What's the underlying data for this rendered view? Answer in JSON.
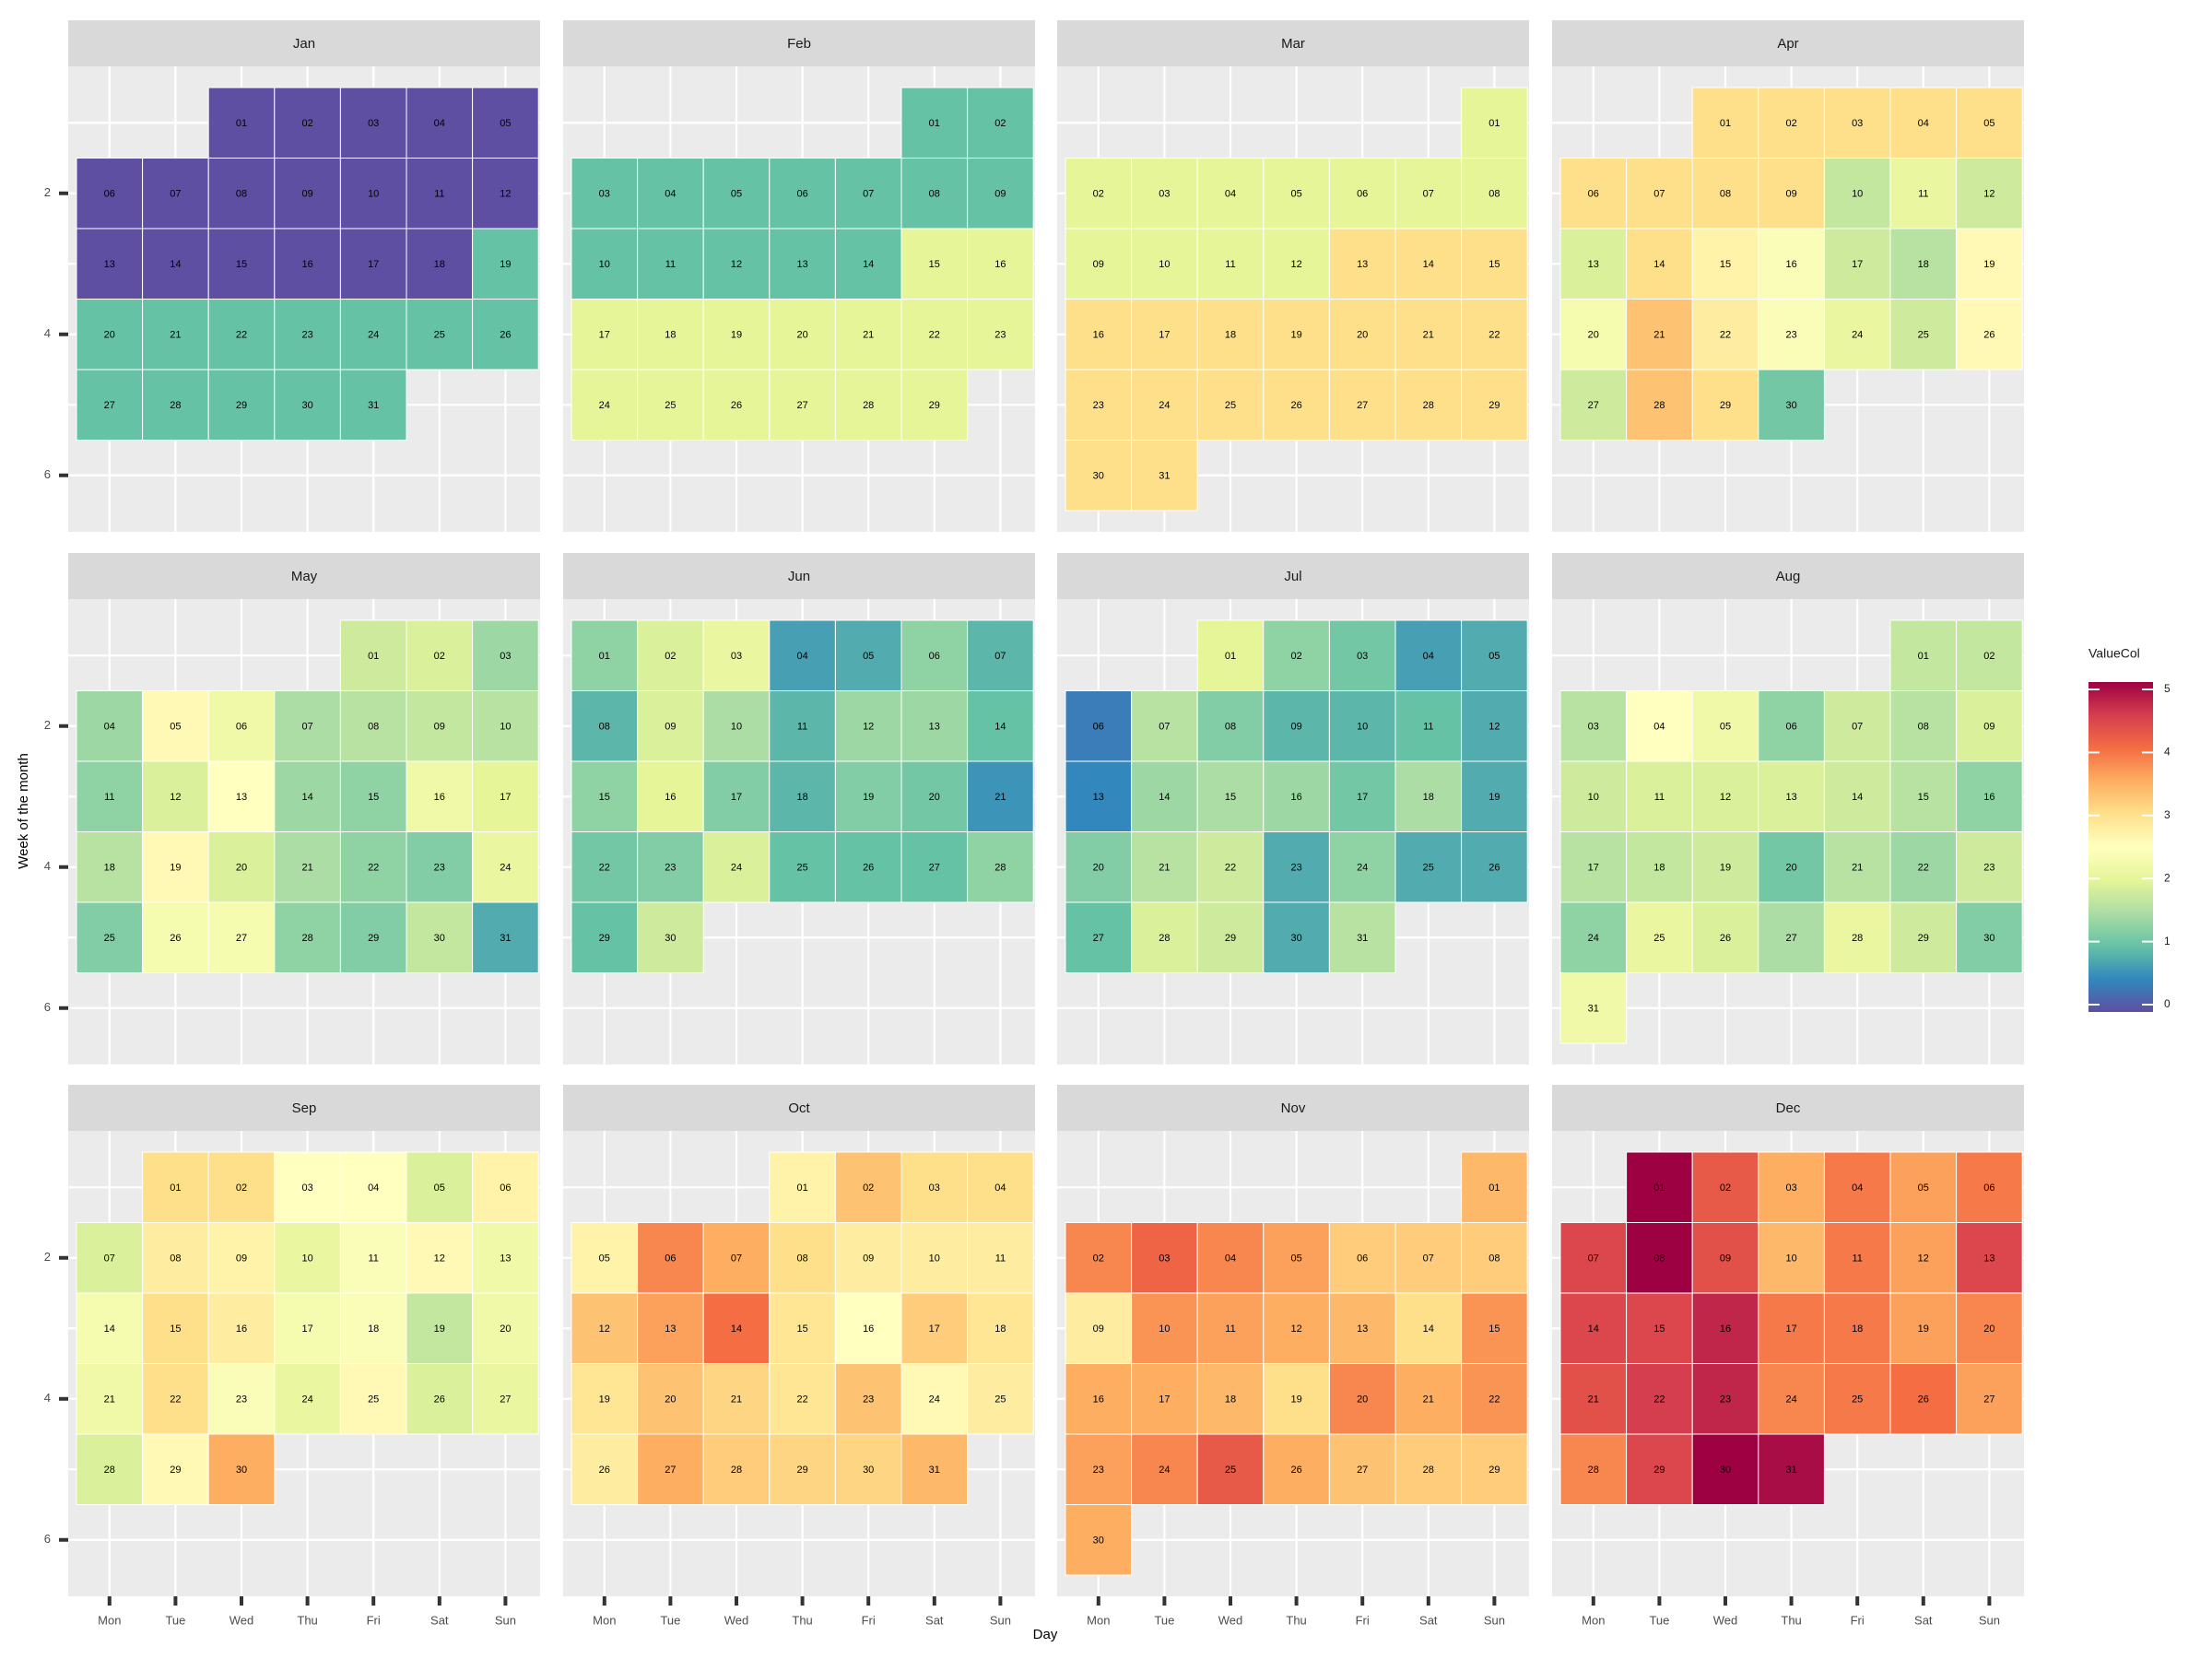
{
  "chart_data": {
    "type": "heatmap",
    "subtype": "calendar-heatmap",
    "xlabel": "Day",
    "ylabel": "Week of the month",
    "x_ticks": [
      "Mon",
      "Tue",
      "Wed",
      "Thu",
      "Fri",
      "Sat",
      "Sun"
    ],
    "y_ticks": [
      2,
      4,
      6
    ],
    "legend": {
      "title": "ValueCol",
      "min": 0,
      "max": 5,
      "ticks": [
        0,
        1,
        2,
        3,
        4,
        5
      ],
      "position": "right"
    },
    "colormap": [
      "#5e4fa2",
      "#3288bd",
      "#66c2a5",
      "#abdda4",
      "#e6f598",
      "#ffffbf",
      "#fee08b",
      "#fdae61",
      "#f46d43",
      "#d53e4f",
      "#9e0142"
    ],
    "grid": true,
    "months": [
      {
        "name": "Jan",
        "start_weekday": 2,
        "values": [
          0,
          0,
          0,
          0,
          0,
          0,
          0,
          0,
          0,
          0,
          0,
          0,
          0,
          0,
          0,
          0,
          0,
          0,
          1,
          1,
          1,
          1,
          1,
          1,
          1,
          1,
          1,
          1,
          1,
          1,
          1
        ]
      },
      {
        "name": "Feb",
        "start_weekday": 5,
        "values": [
          1,
          1,
          1,
          1,
          1,
          1,
          1,
          1,
          1,
          1,
          1,
          1,
          1,
          1,
          2,
          2,
          2,
          2,
          2,
          2,
          2,
          2,
          2,
          2,
          2,
          2,
          2,
          2,
          2
        ]
      },
      {
        "name": "Mar",
        "start_weekday": 6,
        "values": [
          2,
          2,
          2,
          2,
          2,
          2,
          2,
          2,
          2,
          2,
          2,
          2,
          3,
          3,
          3,
          3,
          3,
          3,
          3,
          3,
          3,
          3,
          3,
          3,
          3,
          3,
          3,
          3,
          3,
          3,
          3
        ]
      },
      {
        "name": "Apr",
        "start_weekday": 2,
        "values": [
          3,
          3,
          3,
          3,
          3,
          3,
          3,
          3,
          3,
          1.7,
          2.1,
          1.8,
          1.9,
          3,
          2.7,
          2.4,
          1.8,
          1.6,
          2.6,
          2.3,
          3.3,
          2.8,
          2.4,
          2.1,
          1.8,
          2.6,
          1.8,
          3.3,
          3,
          1.1
        ]
      },
      {
        "name": "May",
        "start_weekday": 4,
        "values": [
          1.8,
          1.9,
          1.4,
          1.4,
          2.6,
          2.2,
          1.5,
          1.6,
          1.7,
          1.6,
          1.3,
          1.9,
          2.5,
          1.4,
          1.3,
          2.2,
          2,
          1.6,
          2.6,
          1.9,
          1.5,
          1.3,
          1.2,
          2.1,
          1.2,
          2.3,
          2.3,
          1.3,
          1.2,
          1.7,
          0.8
        ]
      },
      {
        "name": "Jun",
        "start_weekday": 0,
        "values": [
          1.3,
          1.9,
          2.1,
          0.7,
          0.8,
          1.3,
          0.9,
          0.9,
          1.9,
          1.5,
          0.9,
          1.4,
          1.4,
          1,
          1.3,
          2,
          1.2,
          0.9,
          1.2,
          1.1,
          0.6,
          1.1,
          1.2,
          1.9,
          1,
          1,
          1,
          1.3,
          1,
          1.8
        ]
      },
      {
        "name": "Jul",
        "start_weekday": 2,
        "values": [
          2,
          1.3,
          1.1,
          0.7,
          0.8,
          0.4,
          1.6,
          1.2,
          0.9,
          0.9,
          1,
          0.8,
          0.5,
          1.4,
          1.5,
          1.4,
          1.1,
          1.5,
          0.8,
          1.2,
          1.6,
          1.8,
          0.8,
          1.3,
          0.8,
          0.8,
          1,
          1.9,
          1.8,
          0.8,
          1.6
        ]
      },
      {
        "name": "Aug",
        "start_weekday": 5,
        "values": [
          1.7,
          1.7,
          1.6,
          2.5,
          2.2,
          1.3,
          1.8,
          1.6,
          1.9,
          1.8,
          1.9,
          1.9,
          1.9,
          1.8,
          1.6,
          1.3,
          1.6,
          1.7,
          1.8,
          1.1,
          1.6,
          1.4,
          1.8,
          1.3,
          2.1,
          1.9,
          1.5,
          2.1,
          1.8,
          1.2,
          2.2
        ]
      },
      {
        "name": "Sep",
        "start_weekday": 1,
        "values": [
          3,
          3,
          2.5,
          2.5,
          1.9,
          2.7,
          1.9,
          2.8,
          2.7,
          2.1,
          2.4,
          2.6,
          2.2,
          2.3,
          3,
          2.8,
          2.3,
          2.4,
          1.7,
          2.2,
          2.2,
          3,
          2.4,
          2.1,
          2.6,
          1.9,
          2.1,
          1.9,
          2.6,
          3.5
        ]
      },
      {
        "name": "Oct",
        "start_weekday": 3,
        "values": [
          2.7,
          3.3,
          3,
          3,
          2.7,
          3.8,
          3.5,
          3,
          2.8,
          2.8,
          2.8,
          3.3,
          3.6,
          4,
          2.9,
          2.5,
          3.2,
          2.9,
          2.9,
          3.3,
          3.1,
          2.9,
          3.3,
          2.6,
          2.8,
          2.8,
          3.5,
          3.2,
          3.1,
          3.1,
          3.4
        ]
      },
      {
        "name": "Nov",
        "start_weekday": 6,
        "values": [
          3.4,
          3.8,
          4.1,
          3.8,
          3.6,
          3.2,
          3.2,
          3.2,
          2.8,
          3.7,
          3.6,
          3.5,
          3.4,
          3,
          3.7,
          3.5,
          3.5,
          3.4,
          3,
          3.8,
          3.5,
          3.7,
          3.6,
          3.8,
          4.2,
          3.5,
          3.3,
          3.2,
          3.2,
          3.5
        ]
      },
      {
        "name": "Dec",
        "start_weekday": 1,
        "values": [
          5,
          4.2,
          3.5,
          3.9,
          3.6,
          3.9,
          4.4,
          5,
          4.3,
          3.4,
          3.9,
          3.6,
          4.4,
          4.4,
          4.4,
          4.7,
          3.9,
          3.9,
          3.6,
          3.8,
          4.3,
          4.5,
          4.7,
          3.8,
          3.9,
          4,
          3.6,
          3.8,
          4.4,
          5,
          4.9
        ]
      }
    ]
  }
}
